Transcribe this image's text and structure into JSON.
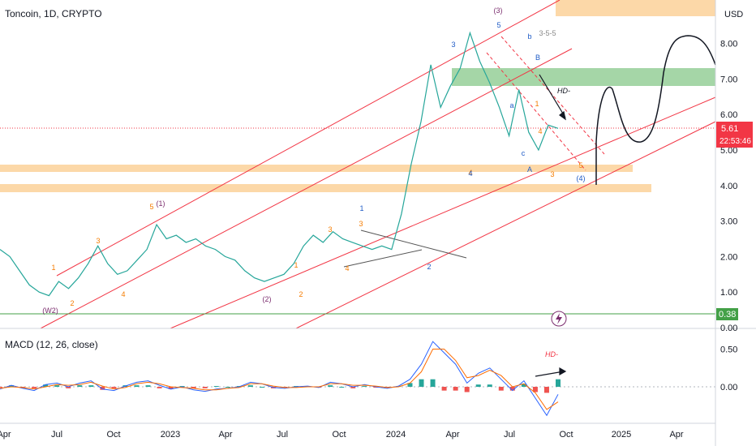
{
  "header": {
    "title": "Toncoin, 1D, CRYPTO",
    "currency": "USD"
  },
  "price_badge": {
    "value": "5.61",
    "countdown": "22:53:46",
    "color": "#f23645"
  },
  "support_badge": {
    "value": "0.38",
    "color": "#43a047"
  },
  "macd": {
    "title": "MACD (12, 26, close)"
  },
  "colors": {
    "channel": "#f23645",
    "zone_orange": "#fcd8a8",
    "zone_green": "#a5d6a7",
    "candle_up": "#26a69a",
    "candle_down": "#ef5350",
    "macd_line": "#2962ff",
    "signal_line": "#ff6d00",
    "wave_orange": "#f57c00",
    "wave_blue": "#1e5bc6",
    "wave_purple": "#7b2d6e"
  },
  "chart_data": [
    {
      "type": "line",
      "name": "price",
      "y_ticks": [
        "8.00",
        "7.00",
        "6.00",
        "5.00",
        "4.00",
        "3.00",
        "2.00",
        "1.00",
        "0.00"
      ],
      "x_ticks": [
        "Apr",
        "Jul",
        "Oct",
        "2023",
        "Apr",
        "Jul",
        "Oct",
        "2024",
        "Apr",
        "Jul",
        "Oct",
        "2025",
        "Apr"
      ],
      "ylim": [
        0,
        9
      ],
      "current_price": 5.61,
      "support_line": 0.38,
      "series": [
        {
          "values": [
            2.2,
            2.0,
            1.6,
            1.2,
            1.0,
            0.9,
            1.3,
            1.1,
            1.4,
            1.8,
            2.3,
            1.8,
            1.5,
            1.6,
            1.9,
            2.2,
            2.9,
            2.5,
            2.6,
            2.4,
            2.5,
            2.3,
            2.2,
            2.0,
            1.9,
            1.6,
            1.4,
            1.3,
            1.4,
            1.5,
            1.8,
            2.3,
            2.6,
            2.4,
            2.7,
            2.5,
            2.4,
            2.3,
            2.2,
            2.3,
            2.2,
            3.2,
            4.6,
            5.8,
            7.4,
            6.2,
            6.8,
            7.3,
            8.3,
            7.5,
            6.9,
            6.2,
            5.4,
            6.7,
            5.5,
            5.0,
            5.7,
            5.61
          ]
        }
      ],
      "wave_labels_orange": [
        "1",
        "2",
        "3",
        "4",
        "5",
        "1",
        "2",
        "3",
        "4",
        "3",
        "4",
        "1",
        "4",
        "5",
        "3"
      ],
      "wave_labels_blue": [
        "1",
        "2",
        "3",
        "4",
        "5",
        "a",
        "b",
        "c",
        "B",
        "A",
        "(4)"
      ],
      "wave_labels_purple": [
        "(W2)",
        "(1)",
        "(2)",
        "(3)"
      ],
      "annotations": [
        "3-5-5",
        "HD-"
      ]
    },
    {
      "type": "bar",
      "name": "MACD (12, 26, close)",
      "y_ticks": [
        "0.50",
        "0.00"
      ],
      "ylim": [
        -0.45,
        0.65
      ],
      "series": [
        {
          "name": "MACD",
          "values": [
            -0.03,
            0.02,
            -0.02,
            -0.05,
            0.03,
            0.05,
            0.0,
            0.05,
            0.08,
            -0.03,
            -0.05,
            0.01,
            0.06,
            0.08,
            0.02,
            -0.03,
            0.0,
            -0.04,
            -0.06,
            -0.03,
            -0.02,
            0.0,
            0.06,
            0.04,
            -0.01,
            -0.02,
            0.0,
            0.01,
            -0.01,
            0.06,
            0.04,
            0.0,
            0.03,
            0.0,
            -0.02,
            0.01,
            0.1,
            0.3,
            0.6,
            0.45,
            0.3,
            0.05,
            0.18,
            0.25,
            0.1,
            -0.05,
            0.08,
            -0.15,
            -0.38,
            -0.1
          ]
        },
        {
          "name": "Signal",
          "values": [
            -0.02,
            0.0,
            -0.01,
            -0.03,
            0.0,
            0.03,
            0.02,
            0.03,
            0.06,
            0.01,
            -0.03,
            -0.01,
            0.04,
            0.06,
            0.04,
            0.0,
            -0.01,
            -0.02,
            -0.04,
            -0.04,
            -0.02,
            -0.01,
            0.04,
            0.04,
            0.01,
            -0.01,
            -0.01,
            0.0,
            0.0,
            0.04,
            0.04,
            0.02,
            0.02,
            0.01,
            -0.01,
            0.0,
            0.05,
            0.2,
            0.5,
            0.5,
            0.35,
            0.12,
            0.15,
            0.22,
            0.15,
            0.0,
            0.04,
            -0.08,
            -0.3,
            -0.2
          ]
        }
      ]
    }
  ]
}
